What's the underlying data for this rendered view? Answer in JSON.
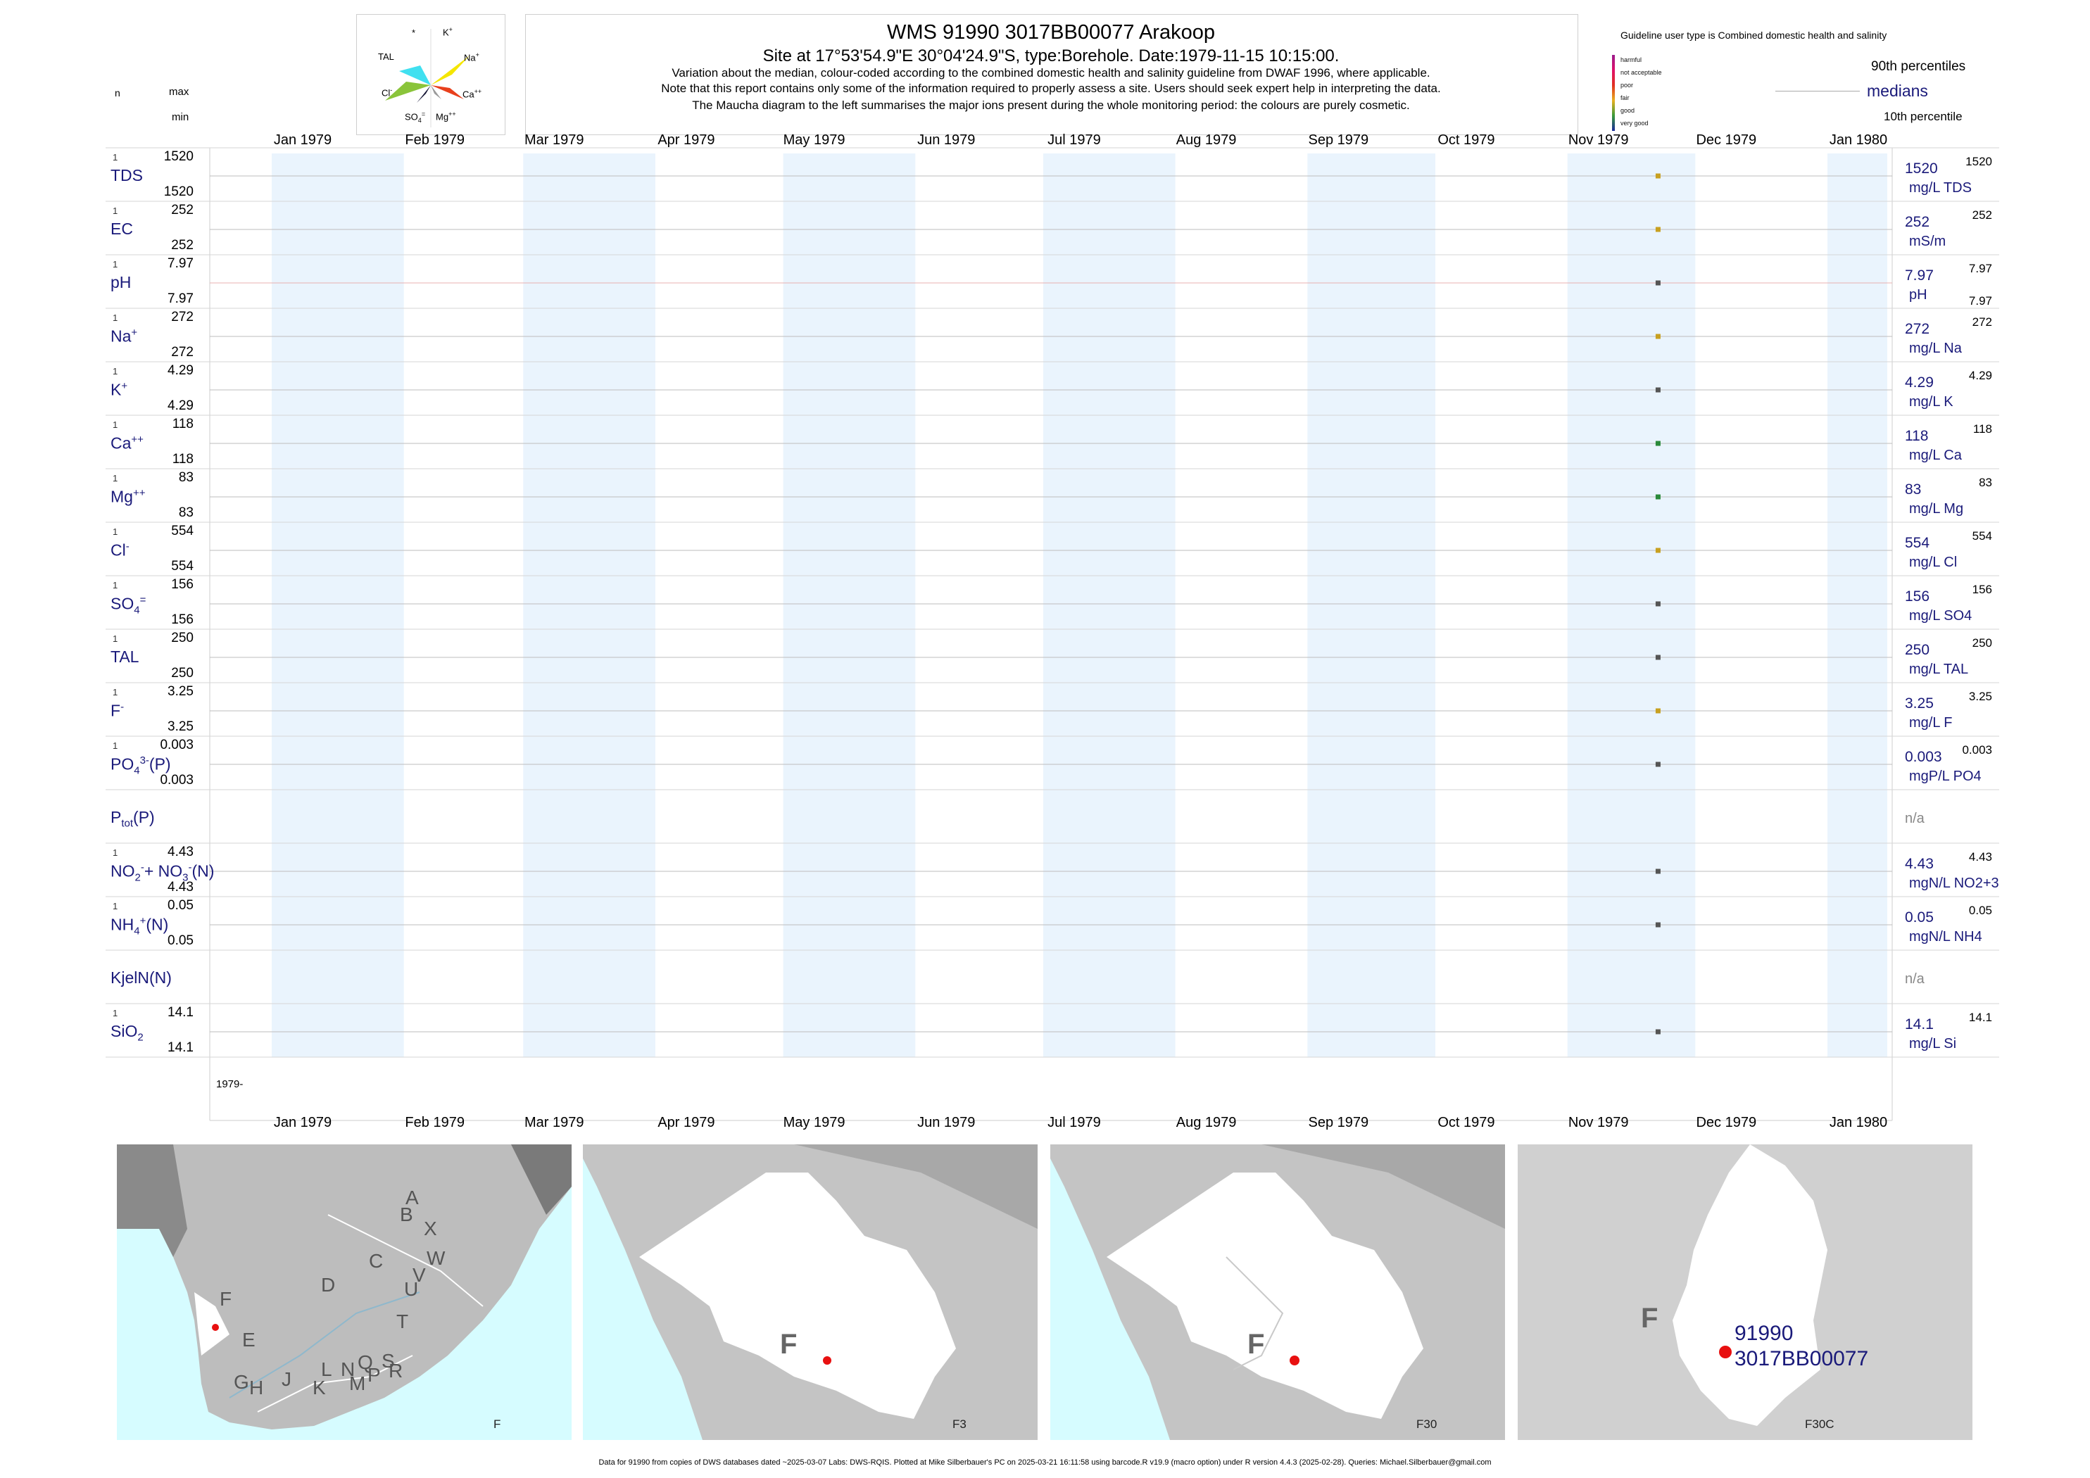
{
  "header": {
    "title": "WMS 91990 3017BB00077 Arakoop",
    "subtitle": "Site at 17°53'54.9\"E 30°04'24.9\"S, type:Borehole. Date:1979-11-15 10:15:00.",
    "note1": "Variation about the median,  colour-coded according to the combined domestic health and salinity guideline from DWAF 1996, where applicable.",
    "note2": "Note that this report contains only some of the information required to properly assess a site. Users should seek expert help in interpreting the data.",
    "note3": "The Maucha diagram to the left summarises the major ions present during the whole monitoring period: the colours are purely cosmetic."
  },
  "left_header": {
    "n": "n",
    "max": "max",
    "min": "min"
  },
  "maucha": {
    "labels": {
      "star": "*",
      "k": "K",
      "k_sup": "+",
      "na": "Na",
      "na_sup": "+",
      "ca": "Ca",
      "ca_sup": "++",
      "mg": "Mg",
      "mg_sup": "++",
      "so4": "SO",
      "so4_sub": "4",
      "so4_sup": "=",
      "cl": "Cl",
      "cl_sup": "-",
      "tal": "TAL"
    },
    "colors": {
      "na": "#f5e600",
      "ca": "#e8401c",
      "mg": "#9a9a9a",
      "so4": "#101030",
      "cl": "#8ac43a",
      "tal": "#40e0f0",
      "k": "#b06ab0"
    }
  },
  "legend": {
    "guideline": "Guideline user type is Combined domestic health and salinity",
    "classes": [
      {
        "label": "harmful",
        "color": "#9b1c8c"
      },
      {
        "label": "not acceptable",
        "color": "#e0106a"
      },
      {
        "label": "poor",
        "color": "#e03020"
      },
      {
        "label": "fair",
        "color": "#e8b020"
      },
      {
        "label": "good",
        "color": "#3a9a3a"
      },
      {
        "label": "very good",
        "color": "#1a2a9a"
      }
    ],
    "p90": "90th percentiles",
    "medians": "medians",
    "p10": "10th percentile"
  },
  "chart_data": {
    "type": "scatter",
    "x_months": [
      "Jan 1979",
      "Feb 1979",
      "Mar 1979",
      "Apr 1979",
      "May 1979",
      "Jun 1979",
      "Jul 1979",
      "Aug 1979",
      "Sep 1979",
      "Oct 1979",
      "Nov 1979",
      "Dec 1979",
      "Jan 1980"
    ],
    "sample_date": "1979-11-15",
    "year_label": "1979-",
    "series": [
      {
        "name": "TDS",
        "sup": "",
        "sub": "",
        "n": "1",
        "max": "1520",
        "min": "1520",
        "value": "1520",
        "unit": "mg/L TDS",
        "p_top": "1520",
        "p_bot": "",
        "color": "#c8a020"
      },
      {
        "name": "EC",
        "sup": "",
        "sub": "",
        "n": "1",
        "max": "252",
        "min": "252",
        "value": "252",
        "unit": "mS/m",
        "p_top": "252",
        "p_bot": "",
        "color": "#c8a020"
      },
      {
        "name": "pH",
        "sup": "",
        "sub": "",
        "n": "1",
        "max": "7.97",
        "min": "7.97",
        "value": "7.97",
        "unit": "pH",
        "p_top": "7.97",
        "p_bot": "7.97",
        "color": "#555555"
      },
      {
        "name": "Na",
        "sup": "+",
        "sub": "",
        "n": "1",
        "max": "272",
        "min": "272",
        "value": "272",
        "unit": "mg/L Na",
        "p_top": "272",
        "p_bot": "",
        "color": "#c8a020"
      },
      {
        "name": "K",
        "sup": "+",
        "sub": "",
        "n": "1",
        "max": "4.29",
        "min": "4.29",
        "value": "4.29",
        "unit": "mg/L K",
        "p_top": "4.29",
        "p_bot": "",
        "color": "#555555"
      },
      {
        "name": "Ca",
        "sup": "++",
        "sub": "",
        "n": "1",
        "max": "118",
        "min": "118",
        "value": "118",
        "unit": "mg/L Ca",
        "p_top": "118",
        "p_bot": "",
        "color": "#2a8a3a"
      },
      {
        "name": "Mg",
        "sup": "++",
        "sub": "",
        "n": "1",
        "max": "83",
        "min": "83",
        "value": "83",
        "unit": "mg/L Mg",
        "p_top": "83",
        "p_bot": "",
        "color": "#2a8a3a"
      },
      {
        "name": "Cl",
        "sup": "-",
        "sub": "",
        "n": "1",
        "max": "554",
        "min": "554",
        "value": "554",
        "unit": "mg/L Cl",
        "p_top": "554",
        "p_bot": "",
        "color": "#c8a020"
      },
      {
        "name": "SO",
        "sup": "=",
        "sub": "4",
        "n": "1",
        "max": "156",
        "min": "156",
        "value": "156",
        "unit": "mg/L SO4",
        "p_top": "156",
        "p_bot": "",
        "color": "#555555"
      },
      {
        "name": "TAL",
        "sup": "",
        "sub": "",
        "n": "1",
        "max": "250",
        "min": "250",
        "value": "250",
        "unit": "mg/L TAL",
        "p_top": "250",
        "p_bot": "",
        "color": "#555555"
      },
      {
        "name": "F",
        "sup": "-",
        "sub": "",
        "n": "1",
        "max": "3.25",
        "min": "3.25",
        "value": "3.25",
        "unit": "mg/L F",
        "p_top": "3.25",
        "p_bot": "",
        "color": "#c8a020"
      },
      {
        "name": "PO",
        "sup": "3-",
        "sub": "4",
        "suffix": "(P)",
        "n": "1",
        "max": "0.003",
        "min": "0.003",
        "value": "0.003",
        "unit": "mgP/L PO4",
        "p_top": "0.003",
        "p_bot": "",
        "color": "#555555"
      },
      {
        "name": "P",
        "sup": "",
        "sub": "tot",
        "suffix": "(P)",
        "n": "",
        "max": "",
        "min": "",
        "value": "n/a",
        "unit": "",
        "p_top": "",
        "p_bot": "",
        "color": ""
      },
      {
        "name": "NO",
        "sup": "-",
        "sub": "2",
        "suffix": "+ NO",
        "sup2": "-",
        "sub2": "3",
        "suffix2": "(N)",
        "n": "1",
        "max": "4.43",
        "min": "4.43",
        "value": "4.43",
        "unit": "mgN/L NO2+3",
        "p_top": "4.43",
        "p_bot": "",
        "color": "#555555"
      },
      {
        "name": "NH",
        "sup": "+",
        "sub": "4",
        "suffix": "(N)",
        "n": "1",
        "max": "0.05",
        "min": "0.05",
        "value": "0.05",
        "unit": "mgN/L NH4",
        "p_top": "0.05",
        "p_bot": "",
        "color": "#555555"
      },
      {
        "name": "KjelN(N)",
        "sup": "",
        "sub": "",
        "n": "",
        "max": "",
        "min": "",
        "value": "n/a",
        "unit": "",
        "p_top": "",
        "p_bot": "",
        "color": ""
      },
      {
        "name": "SiO",
        "sup": "",
        "sub": "2",
        "n": "1",
        "max": "14.1",
        "min": "14.1",
        "value": "14.1",
        "unit": "mg/L Si",
        "p_top": "14.1",
        "p_bot": "",
        "color": "#555555"
      }
    ]
  },
  "maps": {
    "panel1": {
      "letters": [
        "A",
        "B",
        "X",
        "W",
        "C",
        "V",
        "U",
        "D",
        "T",
        "E",
        "F",
        "G",
        "H",
        "J",
        "K",
        "L",
        "N",
        "Q",
        "S",
        "M",
        "P",
        "R"
      ],
      "caption": "F"
    },
    "panel2": {
      "letter": "F",
      "caption": "F3"
    },
    "panel3": {
      "letter": "F",
      "caption": "F30"
    },
    "panel4": {
      "letter": "F",
      "site_id": "91990",
      "site_code": "3017BB00077",
      "caption": "F30C"
    }
  },
  "footer": "Data for 91990 from copies of DWS databases dated ~2025-03-07 Labs: DWS-RQIS. Plotted at Mike Silberbauer's PC on 2025-03-21 16:11:58 using barcode.R v19.9 (macro option) under R version 4.4.3 (2025-02-28). Queries: Michael.Silberbauer@gmail.com"
}
